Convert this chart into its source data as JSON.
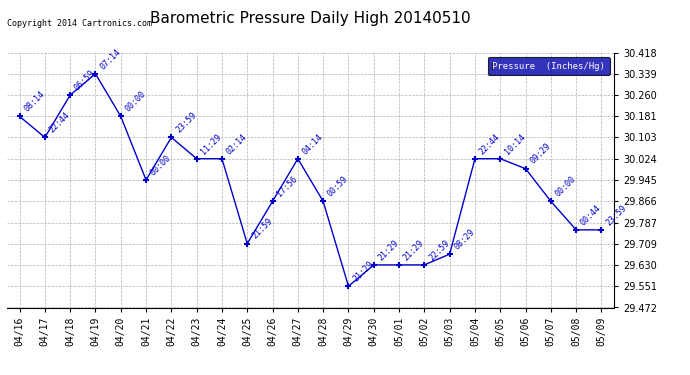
{
  "title": "Barometric Pressure Daily High 20140510",
  "copyright": "Copyright 2014 Cartronics.com",
  "legend_label": "Pressure  (Inches/Hg)",
  "background_color": "#ffffff",
  "plot_bg_color": "#ffffff",
  "line_color": "#0000cc",
  "marker_color": "#0000cc",
  "grid_color": "#aaaaaa",
  "x_labels": [
    "04/16",
    "04/17",
    "04/18",
    "04/19",
    "04/20",
    "04/21",
    "04/22",
    "04/23",
    "04/24",
    "04/25",
    "04/26",
    "04/27",
    "04/28",
    "04/29",
    "04/30",
    "05/01",
    "05/02",
    "05/03",
    "05/04",
    "05/05",
    "05/06",
    "05/07",
    "05/08",
    "05/09"
  ],
  "y_values": [
    30.181,
    30.103,
    30.26,
    30.339,
    30.181,
    29.945,
    30.103,
    30.024,
    30.024,
    29.709,
    29.866,
    30.024,
    29.866,
    29.551,
    29.63,
    29.63,
    29.63,
    29.67,
    30.024,
    30.024,
    29.987,
    29.866,
    29.76,
    29.76
  ],
  "annotations": [
    "08:14",
    "22:44",
    "06:59",
    "07:14",
    "00:00",
    "00:00",
    "23:59",
    "11:29",
    "02:14",
    "21:59",
    "17:56",
    "04:14",
    "00:59",
    "21:29",
    "21:29",
    "21:29",
    "22:59",
    "08:29",
    "22:44",
    "10:14",
    "09:29",
    "00:00",
    "00:44",
    "23:59"
  ],
  "ylim_min": 29.472,
  "ylim_max": 30.418,
  "yticks": [
    29.472,
    29.551,
    29.63,
    29.709,
    29.787,
    29.866,
    29.945,
    30.024,
    30.103,
    30.181,
    30.26,
    30.339,
    30.418
  ],
  "title_fontsize": 11,
  "annotation_fontsize": 6,
  "tick_fontsize": 7,
  "legend_bg": "#0000aa",
  "legend_fg": "#ffffff"
}
